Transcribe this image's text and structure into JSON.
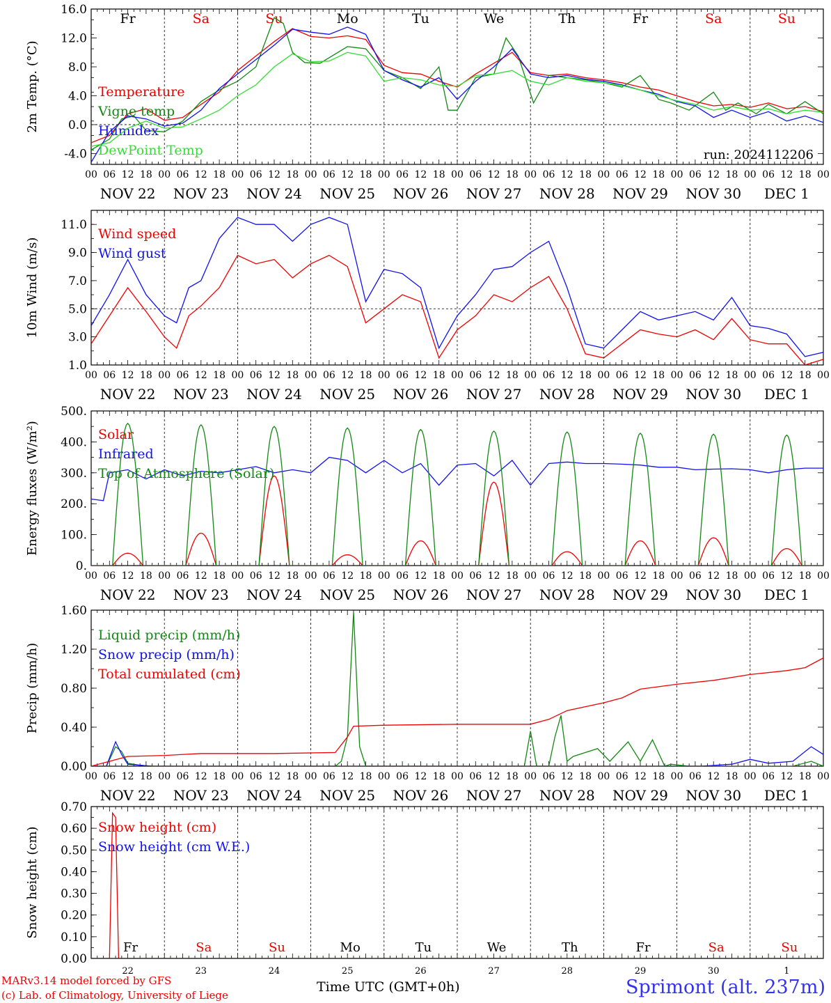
{
  "footer": {
    "credit_line1": "MARv3.14 model forced by GFS",
    "credit_line2": "(c) Lab. of Climatology, University of Liege",
    "xlabel": "Time UTC (GMT+0h)",
    "station": "Sprimont (alt. 237m)"
  },
  "colors": {
    "red": "#ee0000",
    "green": "#118811",
    "blue": "#1111ee",
    "lightgreen": "#33dd33",
    "weekend": "#ee0000",
    "weekday": "#000000"
  },
  "days": [
    {
      "weekday": "Fr",
      "date": "NOV 22",
      "daynum": "22",
      "weekend": false
    },
    {
      "weekday": "Sa",
      "date": "NOV 23",
      "daynum": "23",
      "weekend": true
    },
    {
      "weekday": "Su",
      "date": "NOV 24",
      "daynum": "24",
      "weekend": true
    },
    {
      "weekday": "Mo",
      "date": "NOV 25",
      "daynum": "25",
      "weekend": false
    },
    {
      "weekday": "Tu",
      "date": "NOV 26",
      "daynum": "26",
      "weekend": false
    },
    {
      "weekday": "We",
      "date": "NOV 27",
      "daynum": "27",
      "weekend": false
    },
    {
      "weekday": "Th",
      "date": "NOV 28",
      "daynum": "28",
      "weekend": false
    },
    {
      "weekday": "Fr",
      "date": "NOV 29",
      "daynum": "29",
      "weekend": false
    },
    {
      "weekday": "Sa",
      "date": "NOV 30",
      "daynum": "30",
      "weekend": true
    },
    {
      "weekday": "Su",
      "date": "DEC  1",
      "daynum": "1",
      "weekend": true
    }
  ],
  "hour_ticks": [
    "00",
    "06",
    "12",
    "18"
  ],
  "chart_data": [
    {
      "type": "line",
      "ylabel": "2m Temp. (°C)",
      "ylim": [
        -5.5,
        16.0
      ],
      "yticks": [
        "16.0",
        "12.0",
        "8.0",
        "4.0",
        "0.0",
        "-4.0"
      ],
      "ytick_values": [
        16,
        12,
        8,
        4,
        0,
        -4
      ],
      "dashed_y": 0,
      "annotation": "run: 2024112206",
      "x_unit": "hours since Nov 22 00 UTC",
      "series": [
        {
          "name": "Temperature",
          "color": "red",
          "x": [
            0,
            6,
            12,
            18,
            24,
            30,
            36,
            42,
            48,
            54,
            60,
            66,
            72,
            78,
            84,
            90,
            96,
            102,
            108,
            114,
            120,
            126,
            132,
            138,
            144,
            150,
            156,
            162,
            168,
            174,
            180,
            186,
            192,
            198,
            204,
            210,
            216,
            222,
            228,
            234,
            240
          ],
          "y": [
            -2.5,
            -1.5,
            1.5,
            2.2,
            0.6,
            1.0,
            2.8,
            4.5,
            7.5,
            9.5,
            11.5,
            13.3,
            12.2,
            12.0,
            12.3,
            11.8,
            8.2,
            7.2,
            7.0,
            6.0,
            5.2,
            7.0,
            8.5,
            10.0,
            7.2,
            6.8,
            7.0,
            6.5,
            6.2,
            5.8,
            5.2,
            4.8,
            4.0,
            3.2,
            2.6,
            2.8,
            2.4,
            3.0,
            2.2,
            2.5,
            1.8
          ]
        },
        {
          "name": "Vigne temp",
          "color": "green",
          "x": [
            0,
            6,
            10,
            14,
            18,
            24,
            30,
            36,
            42,
            48,
            54,
            60,
            63,
            66,
            70,
            75,
            84,
            90,
            96,
            102,
            108,
            114,
            117,
            120,
            126,
            132,
            136,
            140,
            145,
            150,
            156,
            162,
            168,
            174,
            180,
            186,
            190,
            196,
            204,
            208,
            212,
            218,
            222,
            228,
            234,
            240
          ],
          "y": [
            -3.5,
            -2.0,
            0.8,
            1.2,
            -0.8,
            -1.0,
            0.5,
            3.2,
            4.8,
            6.0,
            8.0,
            14.8,
            14.0,
            10.0,
            8.6,
            8.5,
            10.8,
            10.5,
            7.5,
            6.5,
            5.0,
            8.0,
            2.0,
            2.0,
            6.5,
            7.0,
            12.0,
            9.5,
            3.0,
            6.8,
            6.5,
            6.2,
            5.8,
            5.2,
            6.8,
            3.5,
            3.0,
            2.0,
            4.5,
            2.0,
            3.0,
            1.5,
            2.8,
            1.5,
            3.2,
            1.5
          ]
        },
        {
          "name": "Humidex",
          "color": "blue",
          "x": [
            0,
            6,
            12,
            18,
            24,
            30,
            36,
            42,
            48,
            54,
            60,
            66,
            72,
            78,
            84,
            90,
            96,
            102,
            108,
            114,
            120,
            126,
            132,
            138,
            144,
            150,
            156,
            162,
            168,
            174,
            180,
            186,
            192,
            198,
            204,
            210,
            216,
            222,
            228,
            234,
            240
          ],
          "y": [
            -5.2,
            -1.0,
            1.2,
            0.8,
            -0.2,
            0.2,
            2.0,
            5.0,
            7.0,
            9.0,
            11.0,
            13.2,
            12.8,
            12.5,
            13.5,
            12.5,
            7.5,
            6.2,
            5.2,
            6.5,
            3.5,
            6.0,
            8.0,
            10.5,
            7.0,
            6.5,
            6.8,
            6.3,
            6.0,
            5.5,
            4.8,
            4.2,
            3.2,
            2.6,
            1.0,
            2.0,
            1.0,
            1.8,
            0.5,
            1.2,
            0.3
          ]
        },
        {
          "name": "DewPoint Temp",
          "color": "lightgreen",
          "x": [
            0,
            6,
            12,
            18,
            24,
            30,
            36,
            42,
            48,
            54,
            60,
            66,
            72,
            78,
            84,
            90,
            96,
            102,
            108,
            114,
            120,
            126,
            132,
            138,
            144,
            150,
            156,
            162,
            168,
            174,
            180,
            186,
            192,
            198,
            204,
            210,
            216,
            222,
            228,
            234,
            240
          ],
          "y": [
            -3.0,
            -2.5,
            -0.5,
            0.5,
            -0.5,
            -0.3,
            0.8,
            2.0,
            4.0,
            5.5,
            8.0,
            9.8,
            8.7,
            8.8,
            10.0,
            9.5,
            6.0,
            6.5,
            6.2,
            5.5,
            5.3,
            6.8,
            7.0,
            7.5,
            6.0,
            5.5,
            6.5,
            6.0,
            5.8,
            5.4,
            4.8,
            4.0,
            3.3,
            2.8,
            2.0,
            2.5,
            2.0,
            2.2,
            1.5,
            2.0,
            1.7
          ]
        }
      ]
    },
    {
      "type": "line",
      "ylabel": "10m Wind (m/s)",
      "ylim": [
        1.0,
        12.0
      ],
      "yticks": [
        "11.0",
        "9.0",
        "7.0",
        "5.0",
        "3.0",
        "1.0"
      ],
      "ytick_values": [
        11,
        9,
        7,
        5,
        3,
        1
      ],
      "dashed_y": 5,
      "series": [
        {
          "name": "Wind speed",
          "color": "red",
          "x": [
            0,
            6,
            12,
            18,
            24,
            28,
            32,
            36,
            42,
            48,
            54,
            60,
            66,
            72,
            78,
            84,
            90,
            96,
            102,
            108,
            114,
            120,
            126,
            132,
            138,
            144,
            150,
            156,
            162,
            168,
            174,
            180,
            186,
            192,
            198,
            204,
            210,
            216,
            222,
            228,
            234,
            240
          ],
          "y": [
            2.5,
            4.5,
            6.5,
            4.8,
            3.0,
            2.2,
            4.5,
            5.2,
            6.5,
            8.8,
            8.2,
            8.5,
            7.2,
            8.2,
            8.8,
            8.0,
            4.0,
            5.0,
            6.0,
            5.5,
            1.5,
            3.5,
            4.5,
            6.0,
            5.5,
            6.5,
            7.3,
            5.0,
            1.8,
            1.5,
            2.5,
            3.5,
            3.2,
            3.0,
            3.5,
            2.8,
            4.3,
            2.8,
            2.5,
            2.5,
            1.0,
            1.4
          ]
        },
        {
          "name": "Wind gust",
          "color": "blue",
          "x": [
            0,
            6,
            12,
            18,
            24,
            28,
            32,
            36,
            42,
            48,
            54,
            60,
            66,
            72,
            78,
            84,
            90,
            96,
            102,
            108,
            114,
            120,
            126,
            132,
            138,
            144,
            150,
            156,
            162,
            168,
            174,
            180,
            186,
            192,
            198,
            204,
            210,
            216,
            222,
            228,
            234,
            240
          ],
          "y": [
            3.8,
            6.0,
            8.5,
            6.0,
            4.5,
            4.0,
            6.5,
            7.0,
            10.0,
            11.5,
            11.0,
            11.0,
            9.8,
            11.0,
            11.5,
            11.0,
            5.5,
            7.8,
            7.5,
            6.5,
            2.2,
            4.5,
            6.0,
            7.8,
            8.0,
            9.0,
            9.8,
            6.5,
            2.5,
            2.2,
            3.5,
            4.8,
            4.2,
            4.5,
            4.8,
            4.2,
            5.8,
            3.8,
            3.6,
            3.2,
            1.6,
            1.9
          ]
        }
      ]
    },
    {
      "type": "line",
      "ylabel": "Energy fluxes (W/m²)",
      "ylim": [
        0,
        500
      ],
      "yticks": [
        "500.",
        "400.",
        "300.",
        "200.",
        "100.",
        "0."
      ],
      "ytick_values": [
        500,
        400,
        300,
        200,
        100,
        0
      ],
      "series": [
        {
          "name": "Solar",
          "color": "red",
          "peaks": [
            40,
            105,
            290,
            35,
            80,
            270,
            45,
            80,
            90,
            55
          ]
        },
        {
          "name": "Infrared",
          "color": "blue",
          "x": [
            0,
            4,
            6,
            12,
            18,
            24,
            30,
            36,
            42,
            48,
            54,
            60,
            66,
            72,
            78,
            84,
            90,
            96,
            102,
            108,
            114,
            120,
            126,
            132,
            138,
            144,
            150,
            156,
            162,
            168,
            174,
            180,
            186,
            192,
            198,
            204,
            210,
            216,
            222,
            228,
            234,
            240
          ],
          "y": [
            215,
            210,
            300,
            310,
            280,
            310,
            290,
            305,
            300,
            310,
            320,
            300,
            310,
            300,
            350,
            340,
            300,
            340,
            300,
            330,
            260,
            325,
            330,
            290,
            340,
            260,
            330,
            335,
            330,
            330,
            328,
            325,
            318,
            318,
            310,
            312,
            313,
            310,
            300,
            310,
            315,
            315
          ]
        },
        {
          "name": "Top of Atmosphere (Solar)",
          "color": "green",
          "peaks": [
            460,
            455,
            450,
            445,
            440,
            435,
            432,
            428,
            425,
            422
          ]
        }
      ]
    },
    {
      "type": "line",
      "ylabel": "Precip (mm/h)",
      "ylim": [
        0,
        1.6
      ],
      "yticks": [
        "1.60",
        "1.20",
        "0.80",
        "0.40",
        "0.00"
      ],
      "ytick_values": [
        1.6,
        1.2,
        0.8,
        0.4,
        0
      ],
      "series": [
        {
          "name": "Liquid precip (mm/h)",
          "color": "green",
          "x": [
            0,
            5,
            8,
            10,
            12,
            16,
            20,
            24,
            60,
            80,
            82,
            84,
            86,
            88,
            90,
            128,
            130,
            132,
            142,
            144,
            146,
            150,
            152,
            154,
            156,
            158,
            166,
            170,
            176,
            180,
            184,
            188,
            190,
            196,
            216,
            222,
            230,
            236,
            240
          ],
          "y": [
            0,
            0,
            0.2,
            0.15,
            0.03,
            0.01,
            0,
            0,
            0,
            0,
            0.05,
            0.3,
            1.58,
            0.2,
            0,
            0,
            0,
            0,
            0,
            0.36,
            0,
            0,
            0.3,
            0.52,
            0.05,
            0.1,
            0.18,
            0.05,
            0.25,
            0.05,
            0.27,
            0,
            0.02,
            0,
            0,
            0,
            0,
            0.05,
            0
          ]
        },
        {
          "name": "Snow precip (mm/h)",
          "color": "blue",
          "x": [
            0,
            5,
            8,
            10,
            12,
            16,
            20,
            200,
            210,
            216,
            222,
            230,
            236,
            240
          ],
          "y": [
            0,
            0,
            0.25,
            0.12,
            0.02,
            0.01,
            0,
            0,
            0.02,
            0.07,
            0.03,
            0.05,
            0.2,
            0.12
          ]
        },
        {
          "name": "Total cumulated (cm)",
          "color": "red",
          "x": [
            0,
            6,
            12,
            24,
            36,
            60,
            80,
            84,
            86,
            96,
            120,
            144,
            150,
            156,
            168,
            174,
            180,
            192,
            204,
            216,
            228,
            234,
            240
          ],
          "y": [
            0,
            0.05,
            0.1,
            0.11,
            0.13,
            0.13,
            0.14,
            0.3,
            0.41,
            0.42,
            0.43,
            0.43,
            0.48,
            0.57,
            0.65,
            0.7,
            0.79,
            0.84,
            0.88,
            0.94,
            0.98,
            1.01,
            1.11
          ]
        }
      ]
    },
    {
      "type": "line",
      "ylabel": "Snow height (cm)",
      "ylim": [
        0,
        0.7
      ],
      "yticks": [
        "0.70",
        "0.60",
        "0.50",
        "0.40",
        "0.30",
        "0.20",
        "0.10",
        "0.00"
      ],
      "ytick_values": [
        0.7,
        0.6,
        0.5,
        0.4,
        0.3,
        0.2,
        0.1,
        0
      ],
      "series": [
        {
          "name": "Snow height (cm)",
          "color": "red",
          "x": [
            0,
            6,
            7,
            7.5,
            8,
            9,
            240
          ],
          "y": [
            0,
            0,
            0.67,
            0.66,
            0.65,
            0,
            0
          ]
        },
        {
          "name": "Snow height (cm W.E.)",
          "color": "blue",
          "x": [
            0,
            240
          ],
          "y": [
            0,
            0
          ]
        }
      ]
    }
  ]
}
